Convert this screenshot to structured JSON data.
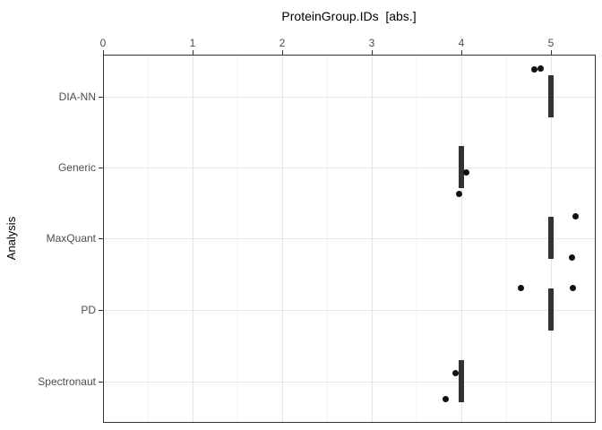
{
  "chart_data": {
    "type": "boxplot",
    "orientation": "horizontal",
    "title": "ProteinGroup.IDs  [abs.]",
    "xlabel": "ProteinGroup.IDs  [abs.]",
    "ylabel": "Analysis",
    "x_axis": {
      "position": "top",
      "ticks": [
        0,
        1,
        2,
        3,
        4,
        5
      ],
      "minor_ticks": [
        0.5,
        1.5,
        2.5,
        3.5,
        4.5
      ],
      "range": [
        0,
        5.49
      ]
    },
    "y_axis": {
      "categories": [
        "DIA-NN",
        "Generic",
        "MaxQuant",
        "PD",
        "Spectronaut"
      ]
    },
    "groups": [
      {
        "label": "DIA-NN",
        "box_value": 5.0,
        "points": [
          {
            "value": 4.81,
            "jitter": -31
          },
          {
            "value": 4.88,
            "jitter": -32
          }
        ]
      },
      {
        "label": "Generic",
        "box_value": 4.0,
        "points": [
          {
            "value": 4.05,
            "jitter": 5
          },
          {
            "value": 3.97,
            "jitter": 29
          }
        ]
      },
      {
        "label": "MaxQuant",
        "box_value": 5.0,
        "points": [
          {
            "value": 5.27,
            "jitter": -25
          },
          {
            "value": 5.23,
            "jitter": 21
          }
        ]
      },
      {
        "label": "PD",
        "box_value": 5.0,
        "points": [
          {
            "value": 4.66,
            "jitter": -25
          },
          {
            "value": 5.24,
            "jitter": -25
          }
        ]
      },
      {
        "label": "Spectronaut",
        "box_value": 4.0,
        "points": [
          {
            "value": 3.93,
            "jitter": -10
          },
          {
            "value": 3.82,
            "jitter": 19
          }
        ]
      }
    ],
    "grid": true,
    "legend": "none",
    "colors": {
      "box": "#333333",
      "point": "#111111",
      "grid_major": "#e6e6e6",
      "grid_minor": "#f2f2f2",
      "panel_border": "#333333",
      "axis_text": "#4d4d4d",
      "title_text": "#000000"
    }
  }
}
